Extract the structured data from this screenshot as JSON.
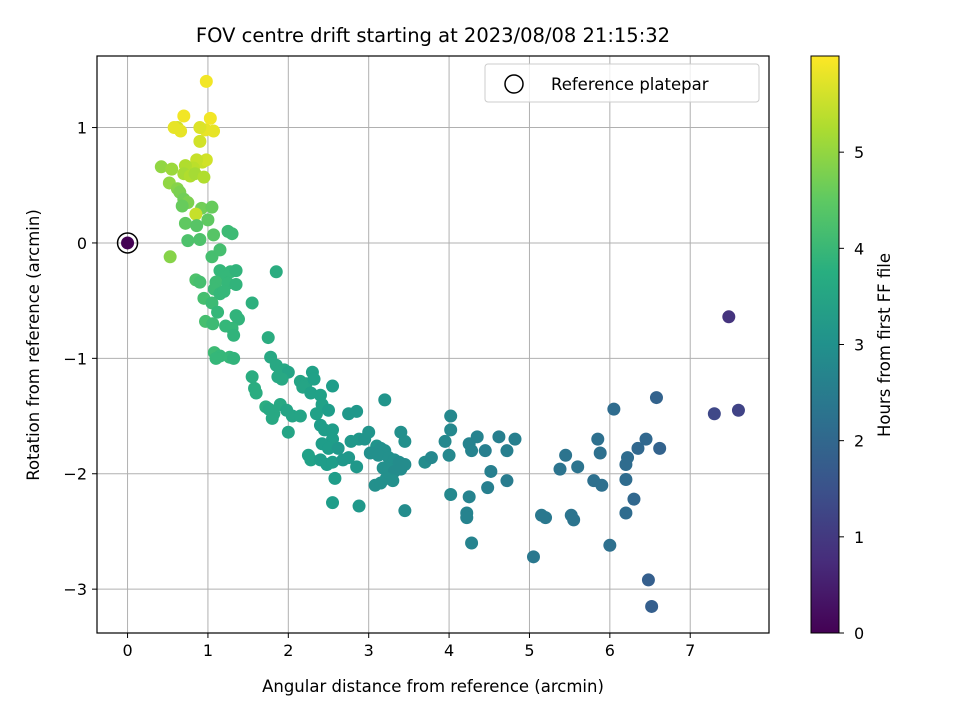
{
  "chart_data": {
    "type": "scatter",
    "title": "FOV centre drift starting at 2023/08/08 21:15:32",
    "xlabel": "Angular distance from reference (arcmin)",
    "ylabel": "Rotation from reference (arcmin)",
    "xlim": [
      -0.38,
      7.98
    ],
    "ylim": [
      -3.38,
      1.62
    ],
    "xticks": [
      "0",
      "1",
      "2",
      "3",
      "4",
      "5",
      "6",
      "7"
    ],
    "yticks": [
      "−3",
      "−2",
      "−1",
      "0",
      "1"
    ],
    "grid": true,
    "colormap": "viridis",
    "colorbar": {
      "label": "Hours from first FF file",
      "range": [
        0,
        6
      ],
      "ticks": [
        "0",
        "1",
        "2",
        "3",
        "4",
        "5"
      ]
    },
    "legend": {
      "placement": "top-right",
      "entries": [
        "Reference platepar"
      ]
    },
    "reference_point": {
      "x": 0,
      "y": 0,
      "c": 0
    },
    "points": [
      [
        0.98,
        1.4,
        5.9
      ],
      [
        0.97,
        0.98,
        5.8
      ],
      [
        0.9,
        1.0,
        5.7
      ],
      [
        0.62,
        1.0,
        5.6
      ],
      [
        0.58,
        1.0,
        5.8
      ],
      [
        0.7,
        1.1,
        5.9
      ],
      [
        0.66,
        0.97,
        5.8
      ],
      [
        1.03,
        1.08,
        5.9
      ],
      [
        1.07,
        0.97,
        5.8
      ],
      [
        0.9,
        0.88,
        5.6
      ],
      [
        0.93,
        0.7,
        5.5
      ],
      [
        0.98,
        0.72,
        5.6
      ],
      [
        0.86,
        0.72,
        5.5
      ],
      [
        0.82,
        0.65,
        5.4
      ],
      [
        0.72,
        0.67,
        5.3
      ],
      [
        0.7,
        0.6,
        5.2
      ],
      [
        0.78,
        0.58,
        5.3
      ],
      [
        0.84,
        0.6,
        5.2
      ],
      [
        0.95,
        0.57,
        5.3
      ],
      [
        0.42,
        0.66,
        5.0
      ],
      [
        0.55,
        0.64,
        5.1
      ],
      [
        0.52,
        0.52,
        5.0
      ],
      [
        0.62,
        0.47,
        4.9
      ],
      [
        0.65,
        0.44,
        4.8
      ],
      [
        0.7,
        0.38,
        4.7
      ],
      [
        0.75,
        0.35,
        4.8
      ],
      [
        0.68,
        0.32,
        4.6
      ],
      [
        0.92,
        0.3,
        4.7
      ],
      [
        1.05,
        0.31,
        4.6
      ],
      [
        0.85,
        0.25,
        5.5
      ],
      [
        1.0,
        0.2,
        4.5
      ],
      [
        0.72,
        0.17,
        4.5
      ],
      [
        0.86,
        0.15,
        4.4
      ],
      [
        1.07,
        0.07,
        4.4
      ],
      [
        0.75,
        0.02,
        4.3
      ],
      [
        0.9,
        0.03,
        4.3
      ],
      [
        0.53,
        -0.12,
        4.9
      ],
      [
        1.05,
        -0.12,
        4.2
      ],
      [
        1.15,
        -0.06,
        4.2
      ],
      [
        1.25,
        0.1,
        4.1
      ],
      [
        1.3,
        0.08,
        4.1
      ],
      [
        1.15,
        -0.24,
        4.0
      ],
      [
        1.2,
        -0.28,
        4.0
      ],
      [
        1.28,
        -0.25,
        4.0
      ],
      [
        1.35,
        -0.24,
        3.9
      ],
      [
        1.85,
        -0.25,
        3.7
      ],
      [
        0.85,
        -0.32,
        4.3
      ],
      [
        0.9,
        -0.34,
        4.2
      ],
      [
        1.1,
        -0.34,
        4.1
      ],
      [
        1.25,
        -0.35,
        4.0
      ],
      [
        1.35,
        -0.36,
        3.9
      ],
      [
        1.08,
        -0.4,
        4.1
      ],
      [
        1.15,
        -0.44,
        4.0
      ],
      [
        1.2,
        -0.42,
        4.0
      ],
      [
        0.95,
        -0.48,
        4.2
      ],
      [
        1.05,
        -0.52,
        4.1
      ],
      [
        1.55,
        -0.52,
        3.8
      ],
      [
        1.12,
        -0.6,
        4.0
      ],
      [
        1.35,
        -0.63,
        3.9
      ],
      [
        1.38,
        -0.66,
        3.9
      ],
      [
        0.97,
        -0.68,
        4.2
      ],
      [
        1.06,
        -0.7,
        4.1
      ],
      [
        1.22,
        -0.72,
        4.0
      ],
      [
        1.3,
        -0.74,
        4.0
      ],
      [
        1.32,
        -0.8,
        3.9
      ],
      [
        1.08,
        -0.95,
        4.1
      ],
      [
        1.15,
        -0.98,
        4.0
      ],
      [
        1.1,
        -1.0,
        4.0
      ],
      [
        1.27,
        -0.99,
        4.0
      ],
      [
        1.32,
        -1.0,
        3.9
      ],
      [
        1.75,
        -0.82,
        3.7
      ],
      [
        1.78,
        -0.99,
        3.6
      ],
      [
        1.85,
        -1.06,
        3.6
      ],
      [
        1.9,
        -1.1,
        3.6
      ],
      [
        1.95,
        -1.1,
        3.6
      ],
      [
        2.0,
        -1.12,
        3.5
      ],
      [
        1.87,
        -1.16,
        3.6
      ],
      [
        1.55,
        -1.16,
        3.7
      ],
      [
        1.92,
        -1.18,
        3.6
      ],
      [
        1.58,
        -1.26,
        3.7
      ],
      [
        1.6,
        -1.3,
        3.7
      ],
      [
        2.15,
        -1.2,
        3.5
      ],
      [
        2.22,
        -1.22,
        3.5
      ],
      [
        2.18,
        -1.25,
        3.5
      ],
      [
        2.3,
        -1.12,
        3.4
      ],
      [
        2.32,
        -1.18,
        3.4
      ],
      [
        2.55,
        -1.24,
        3.3
      ],
      [
        2.28,
        -1.3,
        3.4
      ],
      [
        2.4,
        -1.32,
        3.4
      ],
      [
        1.72,
        -1.42,
        3.7
      ],
      [
        1.76,
        -1.44,
        3.6
      ],
      [
        1.9,
        -1.4,
        3.6
      ],
      [
        1.98,
        -1.45,
        3.5
      ],
      [
        1.82,
        -1.48,
        3.6
      ],
      [
        2.05,
        -1.5,
        3.5
      ],
      [
        2.15,
        -1.5,
        3.5
      ],
      [
        2.35,
        -1.48,
        3.4
      ],
      [
        2.42,
        -1.4,
        3.4
      ],
      [
        2.5,
        -1.45,
        3.3
      ],
      [
        1.8,
        -1.52,
        3.6
      ],
      [
        2.0,
        -1.64,
        3.5
      ],
      [
        2.4,
        -1.58,
        3.3
      ],
      [
        2.45,
        -1.62,
        3.3
      ],
      [
        2.55,
        -1.62,
        3.3
      ],
      [
        2.55,
        -1.7,
        3.3
      ],
      [
        2.75,
        -1.48,
        3.2
      ],
      [
        2.85,
        -1.46,
        3.2
      ],
      [
        3.2,
        -1.36,
        3.1
      ],
      [
        2.42,
        -1.74,
        3.3
      ],
      [
        2.5,
        -1.78,
        3.3
      ],
      [
        2.62,
        -1.78,
        3.2
      ],
      [
        2.78,
        -1.72,
        3.2
      ],
      [
        2.88,
        -1.7,
        3.2
      ],
      [
        2.95,
        -1.7,
        3.1
      ],
      [
        3.0,
        -1.64,
        3.1
      ],
      [
        3.1,
        -1.76,
        3.1
      ],
      [
        3.15,
        -1.78,
        3.0
      ],
      [
        3.2,
        -1.8,
        3.0
      ],
      [
        3.4,
        -1.64,
        3.0
      ],
      [
        3.45,
        -1.72,
        3.0
      ],
      [
        3.02,
        -1.82,
        3.0
      ],
      [
        3.12,
        -1.84,
        3.0
      ],
      [
        3.25,
        -1.86,
        3.0
      ],
      [
        3.32,
        -1.88,
        3.0
      ],
      [
        3.38,
        -1.9,
        2.9
      ],
      [
        3.45,
        -1.92,
        2.9
      ],
      [
        2.25,
        -1.84,
        3.4
      ],
      [
        2.28,
        -1.88,
        3.4
      ],
      [
        2.4,
        -1.88,
        3.3
      ],
      [
        2.48,
        -1.92,
        3.3
      ],
      [
        2.55,
        -1.9,
        3.3
      ],
      [
        2.68,
        -1.88,
        3.2
      ],
      [
        2.75,
        -1.86,
        3.2
      ],
      [
        2.85,
        -1.94,
        3.2
      ],
      [
        3.18,
        -1.95,
        3.0
      ],
      [
        3.25,
        -1.96,
        3.0
      ],
      [
        3.32,
        -1.98,
        2.9
      ],
      [
        3.4,
        -1.96,
        2.9
      ],
      [
        3.7,
        -1.9,
        2.9
      ],
      [
        3.78,
        -1.86,
        2.8
      ],
      [
        3.95,
        -1.72,
        2.8
      ],
      [
        4.02,
        -1.62,
        2.8
      ],
      [
        4.02,
        -1.5,
        2.8
      ],
      [
        4.0,
        -1.84,
        2.8
      ],
      [
        4.25,
        -1.74,
        2.7
      ],
      [
        4.28,
        -1.8,
        2.7
      ],
      [
        4.35,
        -1.68,
        2.7
      ],
      [
        4.45,
        -1.8,
        2.6
      ],
      [
        4.62,
        -1.68,
        2.6
      ],
      [
        4.72,
        -1.8,
        2.6
      ],
      [
        4.82,
        -1.7,
        2.6
      ],
      [
        4.52,
        -1.98,
        2.6
      ],
      [
        4.48,
        -2.12,
        2.6
      ],
      [
        4.72,
        -2.06,
        2.5
      ],
      [
        3.22,
        -2.04,
        3.0
      ],
      [
        3.3,
        -2.06,
        3.0
      ],
      [
        3.08,
        -2.1,
        3.0
      ],
      [
        3.15,
        -2.08,
        3.0
      ],
      [
        2.58,
        -2.04,
        3.3
      ],
      [
        2.55,
        -2.25,
        3.3
      ],
      [
        2.88,
        -2.28,
        3.2
      ],
      [
        3.45,
        -2.32,
        2.9
      ],
      [
        4.02,
        -2.18,
        2.8
      ],
      [
        4.25,
        -2.2,
        2.7
      ],
      [
        4.22,
        -2.34,
        2.7
      ],
      [
        4.22,
        -2.38,
        2.7
      ],
      [
        4.28,
        -2.6,
        2.7
      ],
      [
        5.05,
        -2.72,
        2.4
      ],
      [
        5.15,
        -2.36,
        2.4
      ],
      [
        5.2,
        -2.38,
        2.4
      ],
      [
        5.52,
        -2.36,
        2.3
      ],
      [
        5.55,
        -2.4,
        2.3
      ],
      [
        5.38,
        -1.96,
        2.3
      ],
      [
        5.45,
        -1.84,
        2.3
      ],
      [
        5.6,
        -1.94,
        2.3
      ],
      [
        5.8,
        -2.06,
        2.2
      ],
      [
        5.9,
        -2.1,
        2.2
      ],
      [
        5.85,
        -1.7,
        2.2
      ],
      [
        5.88,
        -1.82,
        2.2
      ],
      [
        6.05,
        -1.44,
        2.1
      ],
      [
        6.2,
        -1.92,
        2.1
      ],
      [
        6.22,
        -1.86,
        2.1
      ],
      [
        6.2,
        -2.05,
        2.1
      ],
      [
        6.35,
        -1.78,
        2.0
      ],
      [
        6.45,
        -1.7,
        2.0
      ],
      [
        6.62,
        -1.78,
        1.9
      ],
      [
        6.58,
        -1.34,
        1.9
      ],
      [
        6.3,
        -2.22,
        2.0
      ],
      [
        6.2,
        -2.34,
        2.1
      ],
      [
        6.0,
        -2.62,
        2.2
      ],
      [
        6.48,
        -2.92,
        1.8
      ],
      [
        6.52,
        -3.15,
        1.8
      ],
      [
        7.3,
        -1.48,
        1.3
      ],
      [
        7.6,
        -1.45,
        1.2
      ],
      [
        7.48,
        -0.64,
        0.9
      ]
    ]
  }
}
